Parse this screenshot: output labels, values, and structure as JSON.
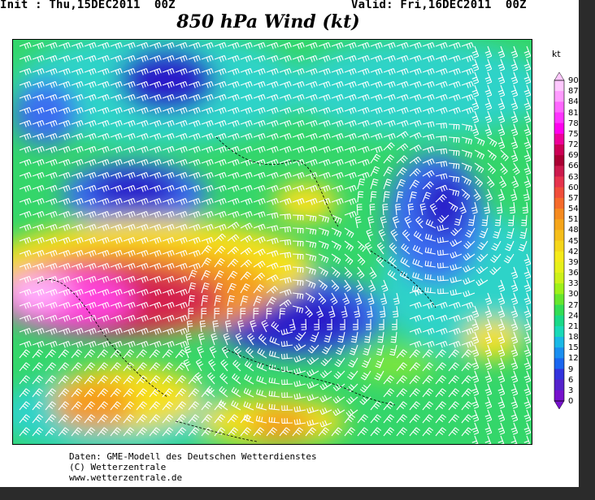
{
  "header": {
    "init": "Init : Thu,15DEC2011  00Z",
    "valid": "Valid: Fri,16DEC2011  00Z",
    "title": "850 hPa Wind (kt)"
  },
  "legend": {
    "unit": "kt",
    "labels": [
      "90",
      "87",
      "84",
      "81",
      "78",
      "75",
      "72",
      "69",
      "66",
      "63",
      "60",
      "57",
      "54",
      "51",
      "48",
      "45",
      "42",
      "39",
      "36",
      "33",
      "30",
      "27",
      "24",
      "21",
      "18",
      "15",
      "12",
      "9",
      "6",
      "3",
      "0"
    ],
    "colors_top_to_bottom": [
      "#ffc8ff",
      "#ff9bff",
      "#ff66ff",
      "#ff33ff",
      "#ff00ee",
      "#ee0099",
      "#cc0055",
      "#aa0033",
      "#cc1a4d",
      "#e6334d",
      "#f04d3a",
      "#f56a2a",
      "#f58a1f",
      "#f5a51a",
      "#f5be1a",
      "#f5d61a",
      "#f5ea1a",
      "#e6f01a",
      "#ccf01a",
      "#9ef01a",
      "#66e62e",
      "#33dd55",
      "#1ad988",
      "#1ad9b8",
      "#1ab8e6",
      "#1a8ef0",
      "#1a66f0",
      "#3333dd",
      "#5522cc",
      "#7711cc"
    ]
  },
  "map": {
    "description_colors": {
      "deep_blue": "#2a1fc9",
      "blue": "#3a6df0",
      "cyan": "#2fd3c8",
      "green": "#34d66a",
      "light_green": "#7fe63a",
      "yellow": "#f5e01f",
      "orange": "#f59a1f",
      "red": "#d4204d",
      "magenta": "#ff44dd",
      "pink": "#ffb3ff",
      "barb": "#ffffff",
      "coast": "#000000"
    }
  },
  "footer": {
    "line1": "Daten: GME-Modell des Deutschen Wetterdienstes",
    "line2": "(C) Wetterzentrale",
    "line3": "www.wetterzentrale.de"
  }
}
